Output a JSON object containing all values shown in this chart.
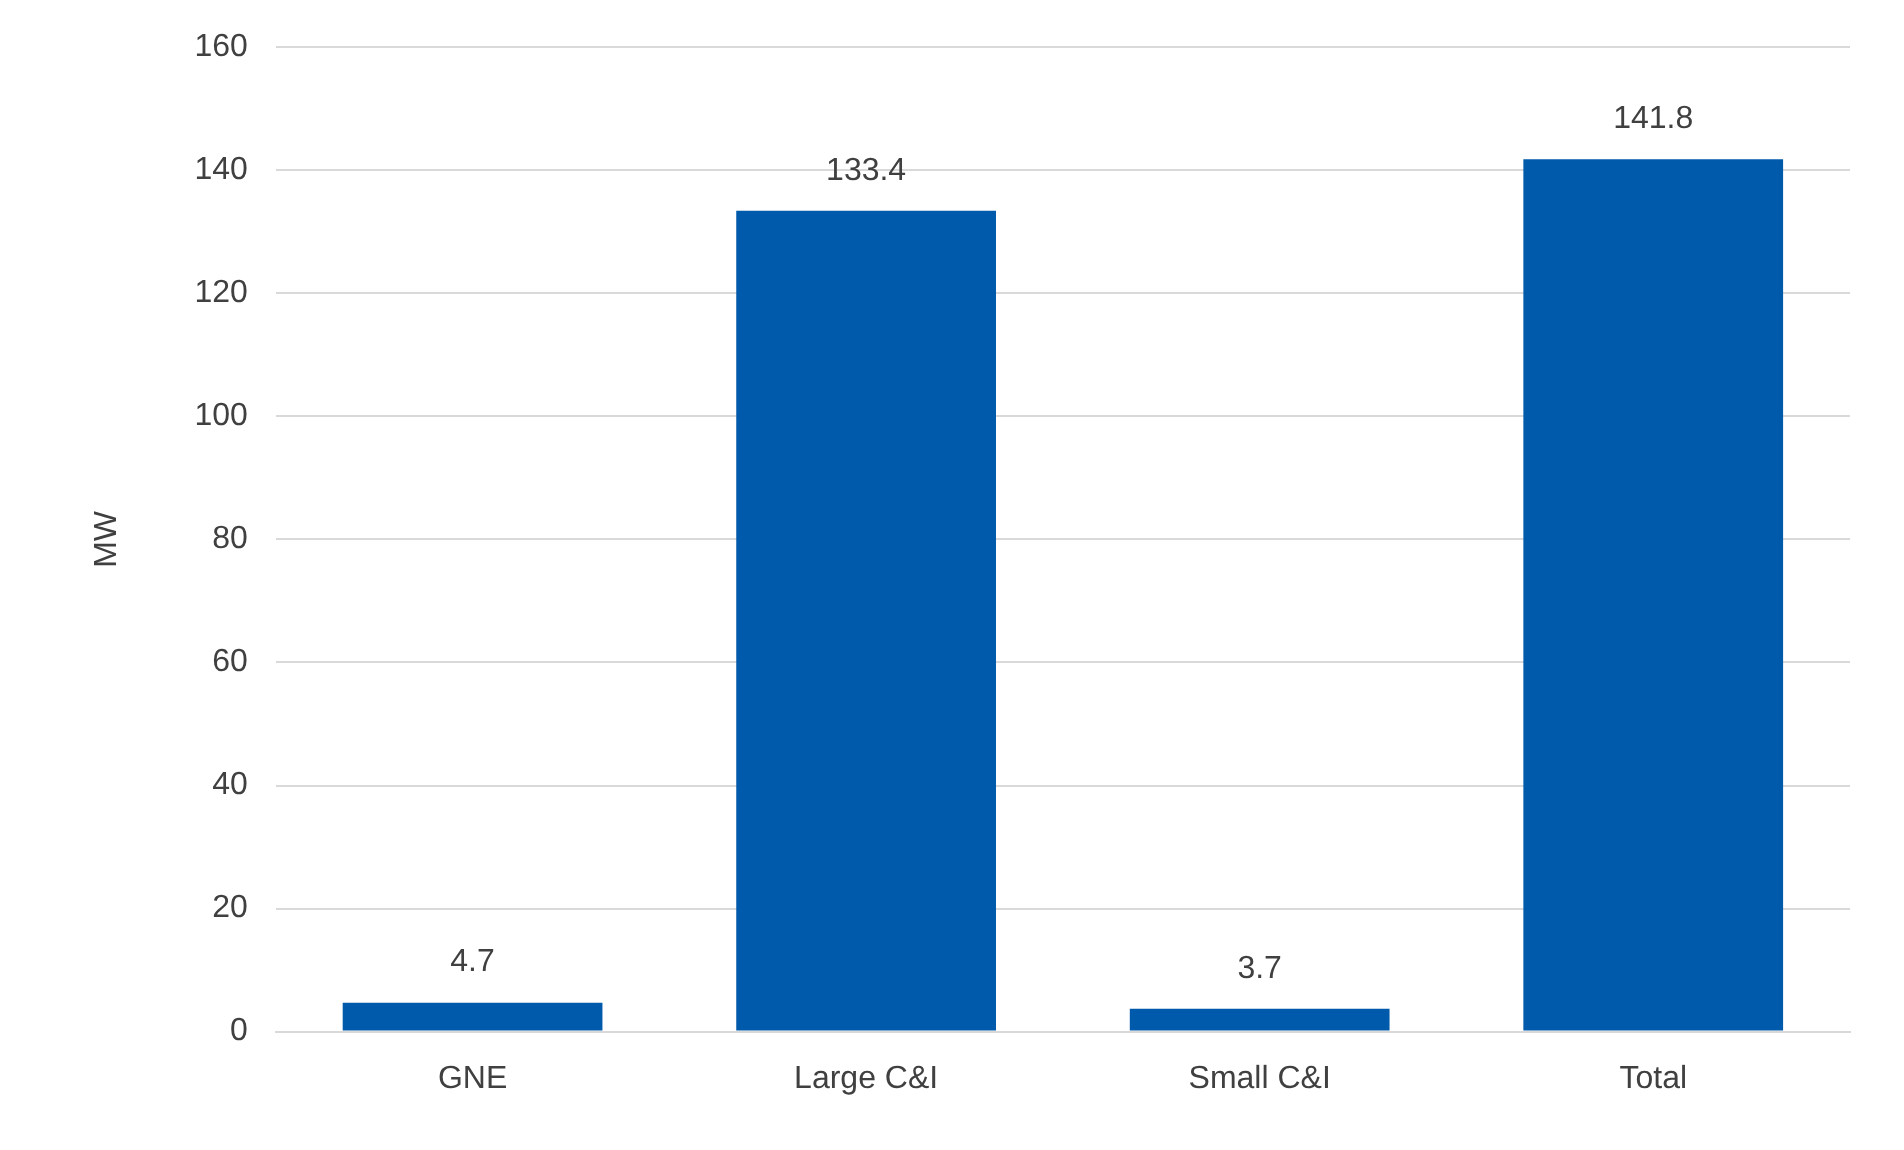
{
  "chart_data": {
    "type": "bar",
    "ylabel": "MW",
    "categories": [
      "GNE",
      "Large C&I",
      "Small C&I",
      "Total"
    ],
    "values": [
      4.7,
      133.4,
      3.7,
      141.8
    ],
    "color": "#005aab",
    "ylim": [
      0,
      160
    ],
    "yticks": [
      0,
      20,
      40,
      60,
      80,
      100,
      120,
      140,
      160
    ],
    "grid": "y",
    "data_labels": true,
    "legend": false
  }
}
